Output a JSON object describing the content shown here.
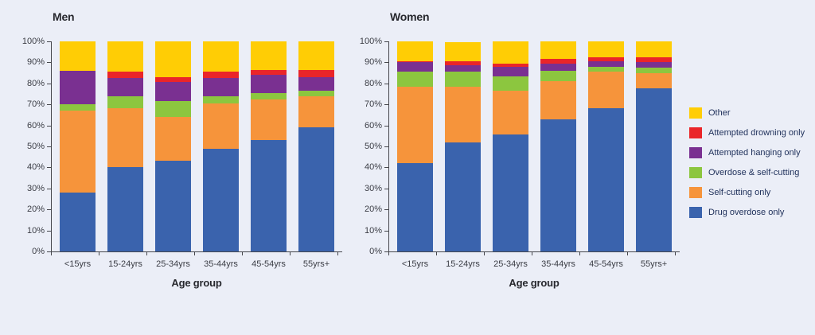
{
  "figure": {
    "background": "#EBEEF7",
    "axis_color": "#45464C",
    "tick_text_color": "#3B3D45",
    "title_text_color": "#27282E",
    "legend_text_color": "#21325C"
  },
  "legend": {
    "items": [
      {
        "label": "Other",
        "color": "#FFCD05"
      },
      {
        "label": "Attempted drowning only",
        "color": "#EA2529"
      },
      {
        "label": "Attempted hanging only",
        "color": "#7A3091"
      },
      {
        "label": "Overdose & self-cutting",
        "color": "#8CC63F"
      },
      {
        "label": "Self-cutting only",
        "color": "#F6943B"
      },
      {
        "label": "Drug overdose only",
        "color": "#3A63AD"
      }
    ]
  },
  "chart_data": [
    {
      "type": "bar",
      "variant": "stacked-100-percent",
      "title": "Men",
      "xlabel": "Age group",
      "ylabel": "",
      "ylim": [
        0,
        100
      ],
      "grid": false,
      "ytick_labels": [
        "0%",
        "10%",
        "20%",
        "30%",
        "40%",
        "50%",
        "60%",
        "70%",
        "80%",
        "90%",
        "100%"
      ],
      "yticks": [
        0,
        10,
        20,
        30,
        40,
        50,
        60,
        70,
        80,
        90,
        100
      ],
      "categories": [
        "<15yrs",
        "15-24yrs",
        "25-34yrs",
        "35-44yrs",
        "45-54yrs",
        "55yrs+"
      ],
      "series": [
        {
          "name": "Drug overdose only",
          "color": "#3A63AD",
          "values": [
            28,
            40,
            43,
            49,
            53,
            59
          ]
        },
        {
          "name": "Self-cutting only",
          "color": "#F6943B",
          "values": [
            39,
            28,
            21,
            21.5,
            19.5,
            15
          ]
        },
        {
          "name": "Overdose & self-cutting",
          "color": "#8CC63F",
          "values": [
            3,
            6,
            7.5,
            3.5,
            3,
            2.5
          ]
        },
        {
          "name": "Attempted hanging only",
          "color": "#7A3091",
          "values": [
            16,
            8.5,
            9,
            8.5,
            8.5,
            6.5
          ]
        },
        {
          "name": "Attempted drowning only",
          "color": "#EA2529",
          "values": [
            0,
            3,
            2.5,
            3,
            2.5,
            3.5
          ]
        },
        {
          "name": "Other",
          "color": "#FFCD05",
          "values": [
            14,
            14.5,
            17,
            14.5,
            13.5,
            13.5
          ]
        }
      ]
    },
    {
      "type": "bar",
      "variant": "stacked-100-percent",
      "title": "Women",
      "xlabel": "Age group",
      "ylabel": "",
      "ylim": [
        0,
        100
      ],
      "grid": false,
      "ytick_labels": [
        "0%",
        "10%",
        "20%",
        "30%",
        "40%",
        "50%",
        "60%",
        "70%",
        "80%",
        "90%",
        "100%"
      ],
      "yticks": [
        0,
        10,
        20,
        30,
        40,
        50,
        60,
        70,
        80,
        90,
        100
      ],
      "categories": [
        "<15yrs",
        "15-24yrs",
        "25-34yrs",
        "35-44yrs",
        "45-54yrs",
        "55yrs+"
      ],
      "series": [
        {
          "name": "Drug overdose only",
          "color": "#3A63AD",
          "values": [
            42,
            52,
            55.5,
            63,
            68,
            77.5
          ]
        },
        {
          "name": "Self-cutting only",
          "color": "#F6943B",
          "values": [
            36.5,
            26.5,
            21,
            18,
            17.5,
            7.5
          ]
        },
        {
          "name": "Overdose & self-cutting",
          "color": "#8CC63F",
          "values": [
            7,
            7,
            7,
            5,
            2.5,
            2.5
          ]
        },
        {
          "name": "Attempted hanging only",
          "color": "#7A3091",
          "values": [
            4.5,
            3,
            4.5,
            3.5,
            2.5,
            2.5
          ]
        },
        {
          "name": "Attempted drowning only",
          "color": "#EA2529",
          "values": [
            0.5,
            2,
            1.5,
            2,
            2,
            2.5
          ]
        },
        {
          "name": "Other",
          "color": "#FFCD05",
          "values": [
            9.5,
            9,
            10.5,
            8.5,
            7.5,
            7.5
          ]
        }
      ]
    }
  ]
}
